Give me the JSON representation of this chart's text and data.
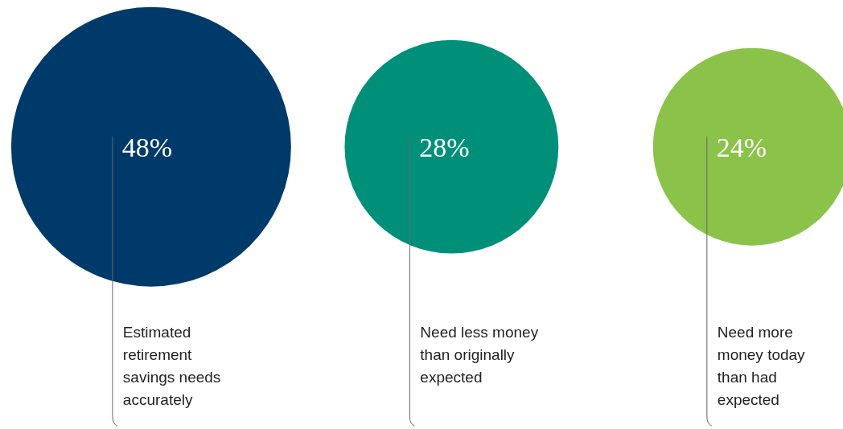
{
  "chart_data": {
    "type": "other",
    "categories": [
      "Estimated retirement savings needs accurately",
      "Need less money than originally expected",
      "Need more money today than had expected"
    ],
    "values": [
      48,
      28,
      24
    ],
    "value_labels": [
      "48%",
      "28%",
      "24%"
    ],
    "colors": [
      "#003a6a",
      "#00907a",
      "#8bc34a"
    ]
  }
}
